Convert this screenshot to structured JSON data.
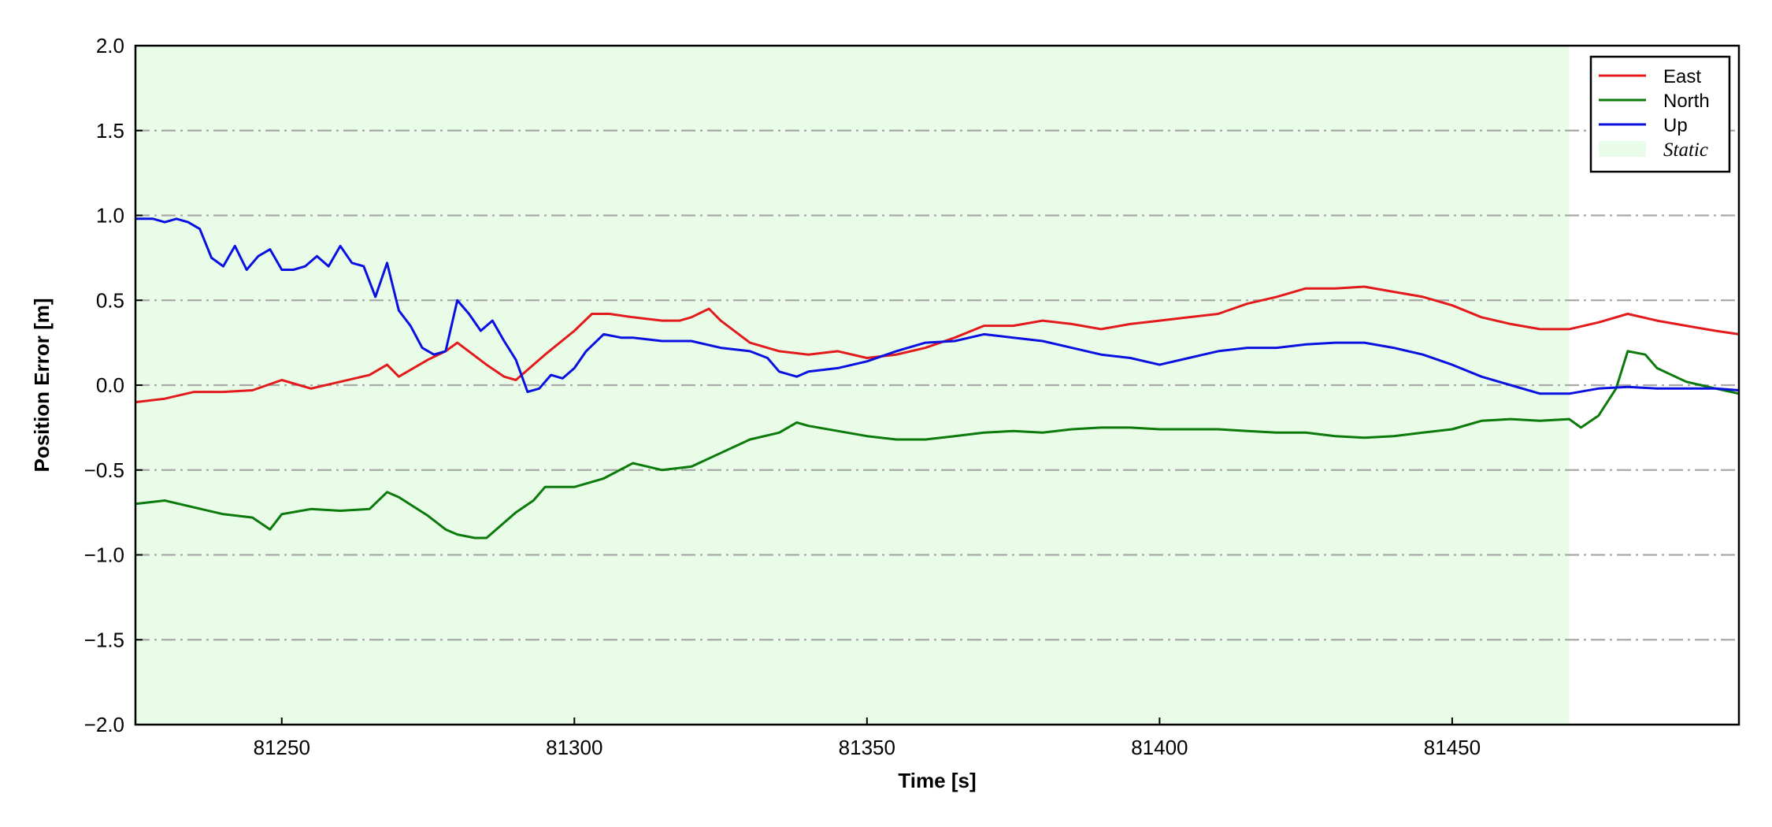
{
  "chart_data": {
    "type": "line",
    "title": "",
    "xlabel": "Time [s]",
    "ylabel": "Position Error [m]",
    "xlim": [
      81225,
      81499
    ],
    "ylim": [
      -2.0,
      2.0
    ],
    "x_ticks": [
      81250,
      81300,
      81350,
      81400,
      81450
    ],
    "x_tick_labels": [
      "81250",
      "81300",
      "81350",
      "81400",
      "81450"
    ],
    "y_ticks": [
      -2.0,
      -1.5,
      -1.0,
      -0.5,
      0.0,
      0.5,
      1.0,
      1.5,
      2.0
    ],
    "y_tick_labels": [
      "−2.0",
      "−1.5",
      "−1.0",
      "−0.5",
      "0.0",
      "0.5",
      "1.0",
      "1.5",
      "2.0"
    ],
    "grid": "horizontal dash-dot",
    "legend_position": "top-right",
    "static_region": {
      "label": "Static",
      "x_start": 81225,
      "x_end": 81470,
      "color": "#e8fce8"
    },
    "series": [
      {
        "name": "East",
        "color": "#e31a1c",
        "x": [
          81225,
          81230,
          81235,
          81240,
          81245,
          81250,
          81255,
          81260,
          81265,
          81268,
          81270,
          81275,
          81278,
          81280,
          81285,
          81288,
          81290,
          81295,
          81300,
          81303,
          81306,
          81310,
          81315,
          81318,
          81320,
          81323,
          81325,
          81330,
          81335,
          81340,
          81345,
          81350,
          81355,
          81360,
          81365,
          81370,
          81375,
          81380,
          81385,
          81390,
          81395,
          81400,
          81405,
          81410,
          81415,
          81420,
          81425,
          81430,
          81435,
          81440,
          81445,
          81450,
          81455,
          81460,
          81465,
          81470,
          81475,
          81480,
          81485,
          81490,
          81495,
          81499
        ],
        "y": [
          -0.1,
          -0.08,
          -0.04,
          -0.04,
          -0.03,
          0.03,
          -0.02,
          0.02,
          0.06,
          0.12,
          0.05,
          0.15,
          0.2,
          0.25,
          0.12,
          0.05,
          0.03,
          0.18,
          0.32,
          0.42,
          0.42,
          0.4,
          0.38,
          0.38,
          0.4,
          0.45,
          0.38,
          0.25,
          0.2,
          0.18,
          0.2,
          0.16,
          0.18,
          0.22,
          0.28,
          0.35,
          0.35,
          0.38,
          0.36,
          0.33,
          0.36,
          0.38,
          0.4,
          0.42,
          0.48,
          0.52,
          0.57,
          0.57,
          0.58,
          0.55,
          0.52,
          0.47,
          0.4,
          0.36,
          0.33,
          0.33,
          0.37,
          0.42,
          0.38,
          0.35,
          0.32,
          0.3
        ]
      },
      {
        "name": "North",
        "color": "#0b7a0b",
        "x": [
          81225,
          81230,
          81235,
          81240,
          81245,
          81248,
          81250,
          81255,
          81260,
          81265,
          81268,
          81270,
          81275,
          81278,
          81280,
          81283,
          81285,
          81290,
          81293,
          81295,
          81300,
          81305,
          81310,
          81315,
          81320,
          81325,
          81330,
          81335,
          81338,
          81340,
          81345,
          81350,
          81355,
          81360,
          81365,
          81370,
          81375,
          81380,
          81385,
          81390,
          81395,
          81400,
          81405,
          81410,
          81415,
          81420,
          81425,
          81430,
          81435,
          81440,
          81445,
          81450,
          81455,
          81460,
          81465,
          81470,
          81472,
          81475,
          81478,
          81480,
          81483,
          81485,
          81490,
          81495,
          81499
        ],
        "y": [
          -0.7,
          -0.68,
          -0.72,
          -0.76,
          -0.78,
          -0.85,
          -0.76,
          -0.73,
          -0.74,
          -0.73,
          -0.63,
          -0.66,
          -0.77,
          -0.85,
          -0.88,
          -0.9,
          -0.9,
          -0.75,
          -0.68,
          -0.6,
          -0.6,
          -0.55,
          -0.46,
          -0.5,
          -0.48,
          -0.4,
          -0.32,
          -0.28,
          -0.22,
          -0.24,
          -0.27,
          -0.3,
          -0.32,
          -0.32,
          -0.3,
          -0.28,
          -0.27,
          -0.28,
          -0.26,
          -0.25,
          -0.25,
          -0.26,
          -0.26,
          -0.26,
          -0.27,
          -0.28,
          -0.28,
          -0.3,
          -0.31,
          -0.3,
          -0.28,
          -0.26,
          -0.21,
          -0.2,
          -0.21,
          -0.2,
          -0.25,
          -0.18,
          -0.02,
          0.2,
          0.18,
          0.1,
          0.02,
          -0.02,
          -0.05
        ]
      },
      {
        "name": "Up",
        "color": "#0a10e0",
        "x": [
          81225,
          81228,
          81230,
          81232,
          81234,
          81236,
          81238,
          81240,
          81242,
          81244,
          81246,
          81248,
          81250,
          81252,
          81254,
          81256,
          81258,
          81260,
          81262,
          81264,
          81266,
          81268,
          81270,
          81272,
          81274,
          81276,
          81278,
          81280,
          81282,
          81284,
          81286,
          81288,
          81290,
          81292,
          81294,
          81296,
          81298,
          81300,
          81302,
          81305,
          81308,
          81310,
          81315,
          81320,
          81325,
          81330,
          81333,
          81335,
          81338,
          81340,
          81345,
          81350,
          81355,
          81360,
          81365,
          81370,
          81375,
          81380,
          81385,
          81390,
          81395,
          81400,
          81405,
          81410,
          81415,
          81420,
          81425,
          81430,
          81435,
          81440,
          81445,
          81450,
          81455,
          81460,
          81465,
          81470,
          81475,
          81480,
          81485,
          81490,
          81495,
          81499
        ],
        "y": [
          0.98,
          0.98,
          0.96,
          0.98,
          0.96,
          0.92,
          0.75,
          0.7,
          0.82,
          0.68,
          0.76,
          0.8,
          0.68,
          0.68,
          0.7,
          0.76,
          0.7,
          0.82,
          0.72,
          0.7,
          0.52,
          0.72,
          0.44,
          0.35,
          0.22,
          0.18,
          0.2,
          0.5,
          0.42,
          0.32,
          0.38,
          0.26,
          0.15,
          -0.04,
          -0.02,
          0.06,
          0.04,
          0.1,
          0.2,
          0.3,
          0.28,
          0.28,
          0.26,
          0.26,
          0.22,
          0.2,
          0.16,
          0.08,
          0.05,
          0.08,
          0.1,
          0.14,
          0.2,
          0.25,
          0.26,
          0.3,
          0.28,
          0.26,
          0.22,
          0.18,
          0.16,
          0.12,
          0.16,
          0.2,
          0.22,
          0.22,
          0.24,
          0.25,
          0.25,
          0.22,
          0.18,
          0.12,
          0.05,
          0.0,
          -0.05,
          -0.05,
          -0.02,
          -0.01,
          -0.02,
          -0.02,
          -0.02,
          -0.03
        ]
      }
    ]
  }
}
